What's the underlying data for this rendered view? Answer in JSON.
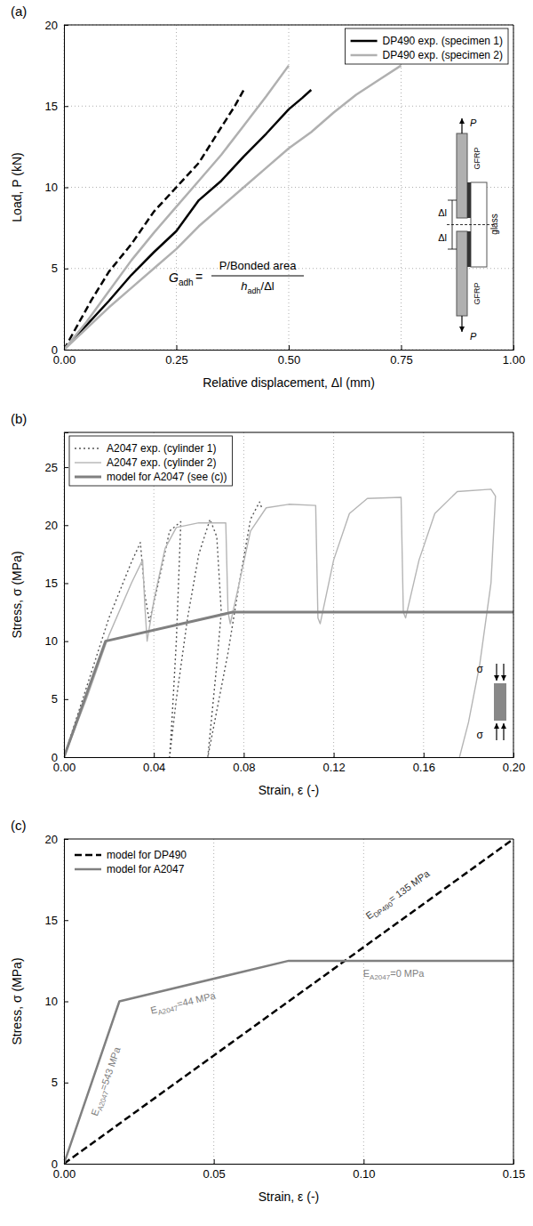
{
  "chart_data": [
    {
      "type": "line",
      "title": "(a)",
      "x_label": "Relative displacement, Δl (mm)",
      "y_label": "Load, P (kN)",
      "xlim": [
        0,
        1
      ],
      "xticks": [
        {
          "value": 0,
          "label": "0.00"
        },
        {
          "value": 0.25,
          "label": "0.25"
        },
        {
          "value": 0.5,
          "label": "0.50"
        },
        {
          "value": 0.75,
          "label": "0.75"
        },
        {
          "value": 1,
          "label": "1.00"
        }
      ],
      "ylim": [
        0,
        20
      ],
      "yticks": [
        0,
        5,
        10,
        15,
        20
      ],
      "grid": true,
      "legend": "upper right",
      "series": [
        {
          "name": "DP490 exp. (specimen 1)",
          "color": "#000000",
          "line_style": "solid",
          "x": [
            0,
            0.05,
            0.1,
            0.15,
            0.2,
            0.25,
            0.3,
            0.35,
            0.4,
            0.45,
            0.5,
            0.53,
            0.55
          ],
          "values": [
            0,
            1.5,
            3,
            4.6,
            6,
            7.3,
            9.2,
            10.4,
            11.9,
            13.3,
            14.8,
            15.5,
            16
          ]
        },
        {
          "name": "DP490 exp. (specimen 1)",
          "color": "#000000",
          "line_style": "dashed",
          "x": [
            0,
            0.03,
            0.06,
            0.1,
            0.15,
            0.2,
            0.25,
            0.3,
            0.35,
            0.38,
            0.4
          ],
          "values": [
            0,
            1.5,
            3,
            4.8,
            6.5,
            8.5,
            10,
            11.5,
            13.7,
            15,
            16
          ]
        },
        {
          "name": "DP490 exp. (specimen 2)",
          "color": "#b0b0b0",
          "line_style": "solid",
          "x": [
            0,
            0.05,
            0.1,
            0.15,
            0.2,
            0.25,
            0.3,
            0.35,
            0.4,
            0.45,
            0.5
          ],
          "values": [
            0,
            1.7,
            3.6,
            5.5,
            7.2,
            8.8,
            10.4,
            12,
            13.8,
            15.6,
            17.5
          ]
        },
        {
          "name": "DP490 exp. (specimen 2)",
          "color": "#b0b0b0",
          "line_style": "solid",
          "x": [
            0,
            0.05,
            0.1,
            0.15,
            0.2,
            0.25,
            0.3,
            0.35,
            0.4,
            0.45,
            0.5,
            0.55,
            0.6,
            0.65,
            0.7,
            0.75
          ],
          "values": [
            0,
            1.3,
            2.6,
            3.8,
            5,
            6.2,
            7.6,
            8.8,
            10,
            11.2,
            12.4,
            13.4,
            14.6,
            15.7,
            16.6,
            17.5
          ]
        }
      ],
      "formula": {
        "lhs": "G",
        "lhs_sub": "adh",
        "relation": "=",
        "numerator": "P/Bonded area",
        "denominator": "h",
        "denominator_sub": "adh",
        "denominator_rest": "/Δl"
      },
      "inset_labels": [
        "P",
        "GFRP",
        "glass",
        "Δl",
        "Δl",
        "GFRP",
        "P"
      ]
    },
    {
      "type": "line",
      "title": "(b)",
      "x_label": "Strain, ε (-)",
      "y_label": "Stress, σ (MPa)",
      "xlim": [
        0,
        0.2
      ],
      "xticks": [
        {
          "value": 0,
          "label": "0.00"
        },
        {
          "value": 0.04,
          "label": "0.04"
        },
        {
          "value": 0.08,
          "label": "0.08"
        },
        {
          "value": 0.12,
          "label": "0.12"
        },
        {
          "value": 0.16,
          "label": "0.16"
        },
        {
          "value": 0.2,
          "label": "0.20"
        }
      ],
      "ylim": [
        0,
        28
      ],
      "yticks": [
        0,
        5,
        10,
        15,
        20,
        25
      ],
      "grid": "x",
      "legend": "upper left",
      "series": [
        {
          "name": "A2047 exp. (cylinder 1)",
          "color": "#555555",
          "line_style": "dotted",
          "x": [
            0,
            0.01,
            0.02,
            0.03,
            0.034,
            0.036,
            0.038,
            0.042,
            0.047,
            0.052,
            0.05,
            0.048,
            0.047,
            0.05,
            0.055,
            0.06,
            0.065,
            0.068,
            0.07,
            0.068,
            0.066,
            0.064,
            0.068,
            0.073,
            0.078,
            0.083,
            0.087,
            0.088
          ],
          "values": [
            0,
            6,
            12,
            16.8,
            18.5,
            14,
            11.7,
            15,
            19.5,
            20.3,
            10,
            3,
            0,
            5,
            12,
            17.5,
            20.5,
            19,
            12.5,
            8,
            4,
            0,
            4,
            9,
            15,
            20.5,
            22,
            21.5
          ]
        },
        {
          "name": "A2047 exp. (cylinder 2)",
          "color": "#b5b5b5",
          "line_style": "solid",
          "x": [
            0,
            0.01,
            0.02,
            0.03,
            0.035,
            0.036,
            0.037,
            0.04,
            0.045,
            0.05,
            0.06,
            0.072,
            0.073,
            0.074,
            0.078,
            0.083,
            0.09,
            0.1,
            0.112,
            0.113,
            0.114,
            0.12,
            0.127,
            0.135,
            0.15,
            0.151,
            0.152,
            0.158,
            0.165,
            0.175,
            0.19,
            0.192,
            0.19,
            0.185,
            0.18,
            0.176
          ],
          "values": [
            0,
            5,
            10.5,
            15,
            17,
            13,
            10,
            13.5,
            18,
            19.8,
            20.2,
            20.2,
            12.5,
            11.5,
            15,
            19.5,
            21.5,
            21.8,
            21.7,
            12,
            11.5,
            17,
            21,
            22.3,
            22.4,
            12.5,
            12,
            17,
            21,
            22.9,
            23.1,
            22.5,
            15,
            8,
            3,
            0
          ]
        },
        {
          "name": "model for A2047 (see (c))",
          "color": "#808080",
          "line_style": "solid",
          "x": [
            0,
            0.0185,
            0.075,
            0.2
          ],
          "values": [
            0,
            10,
            12.5,
            12.5
          ]
        }
      ],
      "inset_labels": [
        "σ",
        "σ"
      ]
    },
    {
      "type": "line",
      "title": "(c)",
      "x_label": "Strain, ε (-)",
      "y_label": "Stress, σ (MPa)",
      "xlim": [
        0,
        0.15
      ],
      "xticks": [
        {
          "value": 0,
          "label": "0.00"
        },
        {
          "value": 0.05,
          "label": "0.05"
        },
        {
          "value": 0.1,
          "label": "0.10"
        },
        {
          "value": 0.15,
          "label": "0.15"
        }
      ],
      "ylim": [
        0,
        20
      ],
      "yticks": [
        0,
        5,
        10,
        15,
        20
      ],
      "grid": "x",
      "legend": "upper left",
      "series": [
        {
          "name": "model for DP490",
          "color": "#000000",
          "line_style": "dashed",
          "x": [
            0,
            0.15
          ],
          "values": [
            0,
            20
          ]
        },
        {
          "name": "model for A2047",
          "color": "#808080",
          "line_style": "solid",
          "x": [
            0,
            0.0185,
            0.075,
            0.15
          ],
          "values": [
            0,
            10,
            12.5,
            12.5
          ]
        }
      ],
      "annotations": [
        {
          "text": "E",
          "sub": "A2047",
          "rest": "=543 MPa",
          "x": 0.015,
          "y": 5,
          "color": "#808080"
        },
        {
          "text": "E",
          "sub": "A2047",
          "rest": "=44 MPa",
          "x": 0.04,
          "y": 9.7,
          "color": "#808080"
        },
        {
          "text": "E",
          "sub": "A2047",
          "rest": "=0 MPa",
          "x": 0.11,
          "y": 11.5,
          "color": "#808080"
        },
        {
          "text": "E",
          "sub": "DP490",
          "rest": "= 135 MPa",
          "x": 0.112,
          "y": 16.4,
          "color": "#333333"
        }
      ]
    }
  ]
}
